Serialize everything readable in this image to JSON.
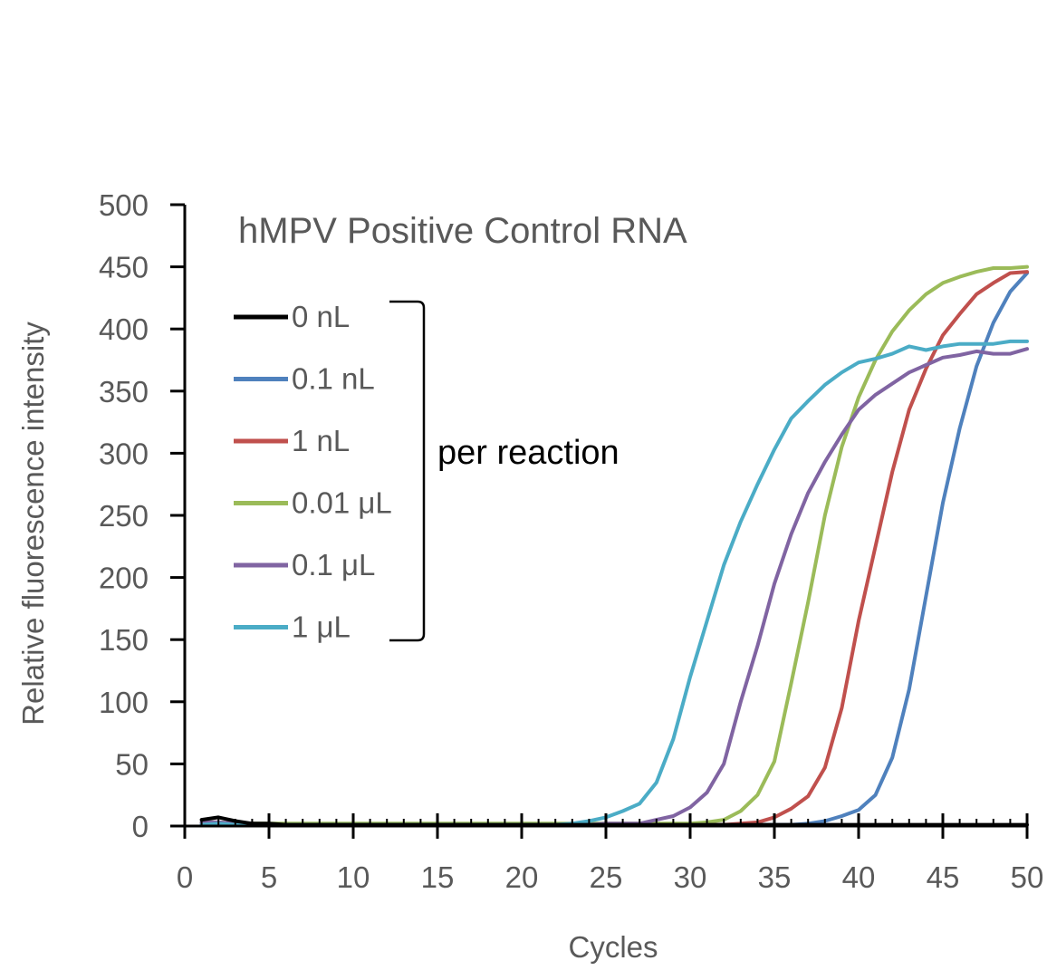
{
  "chart_data": {
    "type": "line",
    "title": "hMPV Positive Control RNA",
    "xlabel": "Cycles",
    "ylabel": "Relative fluorescence intensity",
    "xlim": [
      0,
      50
    ],
    "ylim": [
      0,
      500
    ],
    "x_ticks": [
      "0",
      "5",
      "10",
      "15",
      "20",
      "25",
      "30",
      "35",
      "40",
      "45",
      "50"
    ],
    "y_ticks": [
      "0",
      "50",
      "100",
      "150",
      "200",
      "250",
      "300",
      "350",
      "400",
      "450",
      "500"
    ],
    "grid": false,
    "legend_position": "left",
    "annotation": "per reaction",
    "x": [
      1,
      2,
      3,
      4,
      5,
      6,
      7,
      8,
      9,
      10,
      11,
      12,
      13,
      14,
      15,
      16,
      17,
      18,
      19,
      20,
      21,
      22,
      23,
      24,
      25,
      26,
      27,
      28,
      29,
      30,
      31,
      32,
      33,
      34,
      35,
      36,
      37,
      38,
      39,
      40,
      41,
      42,
      43,
      44,
      45,
      46,
      47,
      48,
      49,
      50
    ],
    "series": [
      {
        "name": "0 nL",
        "color": "#000000",
        "values": [
          5,
          7,
          4,
          2,
          2,
          1,
          1,
          1,
          1,
          1,
          1,
          1,
          1,
          1,
          1,
          1,
          1,
          1,
          1,
          1,
          1,
          1,
          1,
          1,
          1,
          1,
          1,
          1,
          1,
          1,
          1,
          1,
          1,
          1,
          1,
          1,
          1,
          1,
          1,
          1,
          1,
          1,
          1,
          1,
          1,
          1,
          1,
          1,
          1,
          1
        ]
      },
      {
        "name": "0.1 nL",
        "color": "#4F81BD",
        "values": [
          2,
          2,
          2,
          1,
          1,
          1,
          1,
          1,
          1,
          1,
          1,
          1,
          1,
          1,
          1,
          1,
          1,
          1,
          1,
          1,
          1,
          1,
          1,
          1,
          1,
          1,
          1,
          1,
          1,
          1,
          1,
          1,
          1,
          1,
          1,
          1,
          2,
          4,
          8,
          13,
          25,
          55,
          110,
          185,
          260,
          320,
          370,
          405,
          430,
          445
        ]
      },
      {
        "name": "1 nL",
        "color": "#C0504D",
        "values": [
          3,
          3,
          2,
          2,
          1,
          1,
          1,
          1,
          1,
          1,
          1,
          1,
          1,
          1,
          1,
          1,
          1,
          1,
          1,
          1,
          1,
          1,
          1,
          1,
          1,
          1,
          1,
          1,
          1,
          1,
          1,
          1,
          2,
          3,
          7,
          14,
          24,
          47,
          95,
          165,
          225,
          285,
          335,
          368,
          395,
          412,
          428,
          437,
          445,
          446
        ]
      },
      {
        "name": "0.01 μL",
        "color": "#9BBB59",
        "values": [
          3,
          3,
          2,
          2,
          2,
          2,
          2,
          2,
          2,
          2,
          2,
          2,
          2,
          2,
          2,
          2,
          2,
          2,
          2,
          2,
          2,
          2,
          2,
          2,
          2,
          2,
          2,
          2,
          2,
          2,
          3,
          5,
          12,
          25,
          52,
          115,
          180,
          250,
          305,
          345,
          375,
          398,
          415,
          428,
          437,
          442,
          446,
          449,
          449,
          450
        ]
      },
      {
        "name": "0.1 μL",
        "color": "#8064A2",
        "values": [
          3,
          3,
          2,
          2,
          1,
          1,
          1,
          1,
          1,
          1,
          1,
          1,
          1,
          1,
          1,
          1,
          1,
          1,
          1,
          1,
          1,
          1,
          1,
          1,
          2,
          2,
          2,
          5,
          8,
          15,
          27,
          50,
          100,
          145,
          195,
          235,
          268,
          293,
          315,
          335,
          347,
          356,
          365,
          371,
          377,
          379,
          382,
          380,
          380,
          384
        ]
      },
      {
        "name": "1 μL",
        "color": "#4BACC6",
        "values": [
          1,
          2,
          1,
          1,
          1,
          1,
          1,
          1,
          1,
          1,
          1,
          1,
          1,
          1,
          1,
          1,
          1,
          1,
          1,
          1,
          1,
          1,
          2,
          4,
          7,
          12,
          18,
          35,
          70,
          120,
          165,
          210,
          245,
          275,
          303,
          328,
          342,
          355,
          365,
          373,
          376,
          380,
          386,
          383,
          386,
          388,
          388,
          388,
          390,
          390
        ]
      }
    ]
  }
}
